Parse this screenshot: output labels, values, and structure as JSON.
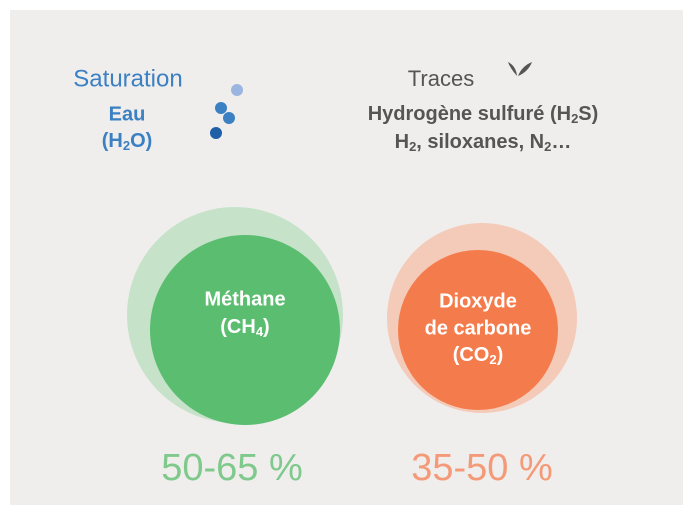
{
  "saturation": {
    "title": "Saturation",
    "name": "Eau",
    "formula": [
      "(H",
      "2",
      "O)"
    ]
  },
  "traces": {
    "title": "Traces",
    "line1": [
      "Hydrogène sulfuré (H",
      "2",
      "S)"
    ],
    "line2": [
      "H",
      "2",
      ", siloxanes, N",
      "2",
      "…"
    ]
  },
  "methane": {
    "label": [
      "Méthane"
    ],
    "formula": [
      "(CH",
      "4",
      ")"
    ],
    "share": "50-65 %"
  },
  "co2": {
    "label": [
      "Dioxyde",
      "de carbone"
    ],
    "formula": [
      "(CO",
      "2",
      ")"
    ],
    "share": "35-50 %"
  }
}
